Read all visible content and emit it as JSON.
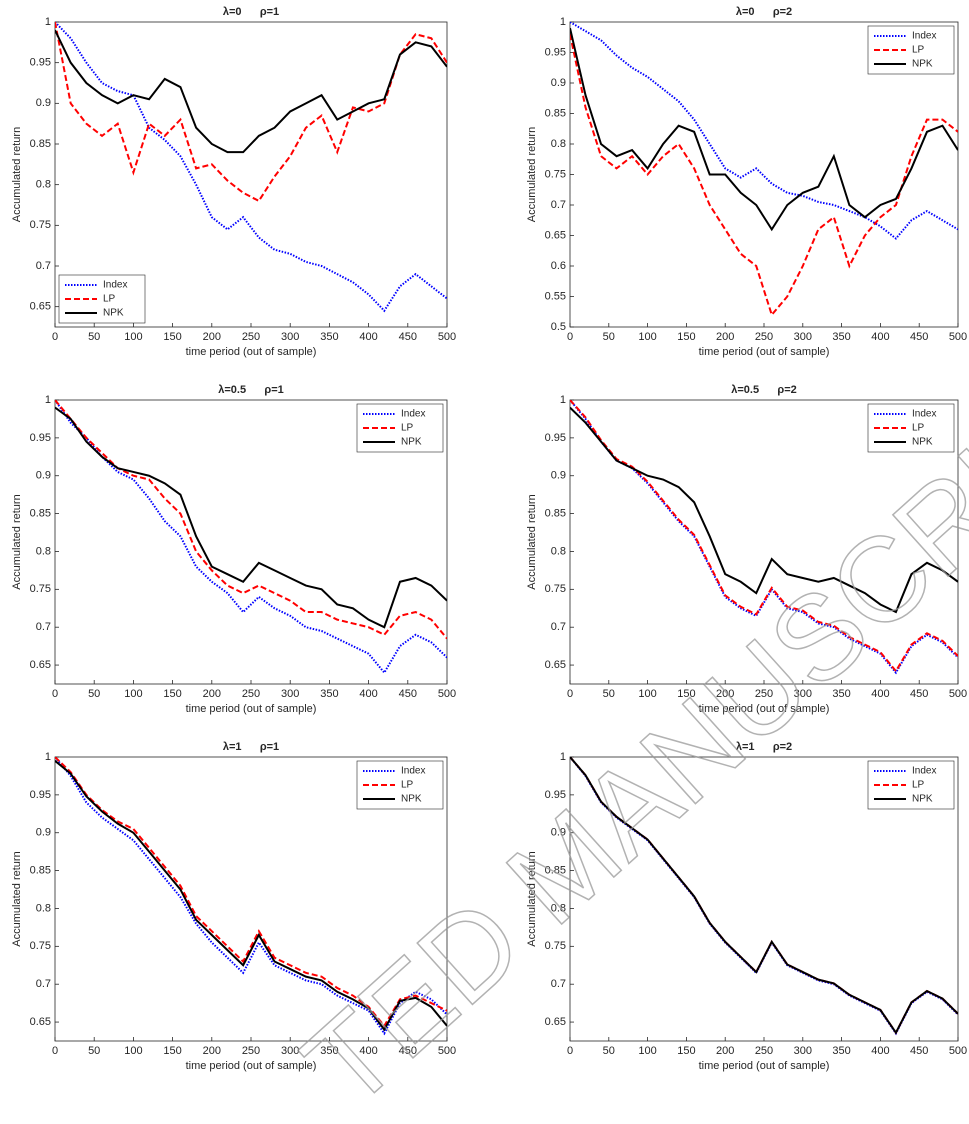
{
  "chart_data": [
    {
      "type": "line",
      "title": "λ=0      ρ=1",
      "xlabel": "time period (out of sample)",
      "ylabel": "Accumulated return",
      "x": [
        0,
        20,
        40,
        60,
        80,
        100,
        120,
        140,
        160,
        180,
        200,
        220,
        240,
        260,
        280,
        300,
        320,
        340,
        360,
        380,
        400,
        420,
        440,
        460,
        480,
        500
      ],
      "xlim": [
        0,
        500
      ],
      "xticks": [
        0,
        50,
        100,
        150,
        200,
        250,
        300,
        350,
        400,
        450,
        500
      ],
      "ylim": [
        0.625,
        1
      ],
      "yticks": [
        0.65,
        0.7,
        0.75,
        0.8,
        0.85,
        0.9,
        0.95,
        1
      ],
      "legend": "lower left",
      "series": [
        {
          "name": "Index",
          "color": "#0000ff",
          "style": "dotted",
          "values": [
            1.0,
            0.98,
            0.95,
            0.925,
            0.915,
            0.91,
            0.87,
            0.855,
            0.835,
            0.8,
            0.76,
            0.745,
            0.76,
            0.735,
            0.72,
            0.715,
            0.705,
            0.7,
            0.69,
            0.68,
            0.665,
            0.645,
            0.675,
            0.69,
            0.675,
            0.66
          ]
        },
        {
          "name": "LP",
          "color": "#ff0000",
          "style": "dashed",
          "values": [
            1.0,
            0.9,
            0.875,
            0.86,
            0.875,
            0.815,
            0.875,
            0.86,
            0.88,
            0.82,
            0.825,
            0.805,
            0.79,
            0.78,
            0.81,
            0.835,
            0.87,
            0.885,
            0.84,
            0.895,
            0.89,
            0.9,
            0.96,
            0.985,
            0.98,
            0.95
          ]
        },
        {
          "name": "NPK",
          "color": "#000000",
          "style": "solid",
          "values": [
            0.99,
            0.95,
            0.925,
            0.91,
            0.9,
            0.91,
            0.905,
            0.93,
            0.92,
            0.87,
            0.85,
            0.84,
            0.84,
            0.86,
            0.87,
            0.89,
            0.9,
            0.91,
            0.88,
            0.89,
            0.9,
            0.905,
            0.96,
            0.975,
            0.97,
            0.945
          ]
        }
      ]
    },
    {
      "type": "line",
      "title": "λ=0      ρ=2",
      "xlabel": "time period (out of sample)",
      "ylabel": "Accumulated return",
      "x": [
        0,
        20,
        40,
        60,
        80,
        100,
        120,
        140,
        160,
        180,
        200,
        220,
        240,
        260,
        280,
        300,
        320,
        340,
        360,
        380,
        400,
        420,
        440,
        460,
        480,
        500
      ],
      "xlim": [
        0,
        500
      ],
      "xticks": [
        0,
        50,
        100,
        150,
        200,
        250,
        300,
        350,
        400,
        450,
        500
      ],
      "ylim": [
        0.5,
        1
      ],
      "yticks": [
        0.5,
        0.55,
        0.6,
        0.65,
        0.7,
        0.75,
        0.8,
        0.85,
        0.9,
        0.95,
        1
      ],
      "legend": "upper right",
      "series": [
        {
          "name": "Index",
          "color": "#0000ff",
          "style": "dotted",
          "values": [
            1.0,
            0.985,
            0.97,
            0.945,
            0.925,
            0.91,
            0.89,
            0.87,
            0.84,
            0.8,
            0.76,
            0.745,
            0.76,
            0.735,
            0.72,
            0.715,
            0.705,
            0.7,
            0.69,
            0.68,
            0.665,
            0.645,
            0.675,
            0.69,
            0.675,
            0.66
          ]
        },
        {
          "name": "LP",
          "color": "#ff0000",
          "style": "dashed",
          "values": [
            0.98,
            0.86,
            0.78,
            0.76,
            0.78,
            0.75,
            0.78,
            0.8,
            0.76,
            0.7,
            0.66,
            0.62,
            0.6,
            0.52,
            0.55,
            0.6,
            0.66,
            0.68,
            0.6,
            0.65,
            0.68,
            0.7,
            0.78,
            0.84,
            0.84,
            0.82
          ]
        },
        {
          "name": "NPK",
          "color": "#000000",
          "style": "solid",
          "values": [
            0.99,
            0.88,
            0.8,
            0.78,
            0.79,
            0.76,
            0.8,
            0.83,
            0.82,
            0.75,
            0.75,
            0.72,
            0.7,
            0.66,
            0.7,
            0.72,
            0.73,
            0.78,
            0.7,
            0.68,
            0.7,
            0.71,
            0.76,
            0.82,
            0.83,
            0.79
          ]
        }
      ]
    },
    {
      "type": "line",
      "title": "λ=0.5      ρ=1",
      "xlabel": "time period (out of sample)",
      "ylabel": "Accumulated return",
      "x": [
        0,
        20,
        40,
        60,
        80,
        100,
        120,
        140,
        160,
        180,
        200,
        220,
        240,
        260,
        280,
        300,
        320,
        340,
        360,
        380,
        400,
        420,
        440,
        460,
        480,
        500
      ],
      "xlim": [
        0,
        500
      ],
      "xticks": [
        0,
        50,
        100,
        150,
        200,
        250,
        300,
        350,
        400,
        450,
        500
      ],
      "ylim": [
        0.625,
        1
      ],
      "yticks": [
        0.65,
        0.7,
        0.75,
        0.8,
        0.85,
        0.9,
        0.95,
        1
      ],
      "legend": "upper right",
      "series": [
        {
          "name": "Index",
          "color": "#0000ff",
          "style": "dotted",
          "values": [
            1.0,
            0.97,
            0.95,
            0.925,
            0.905,
            0.895,
            0.87,
            0.84,
            0.82,
            0.78,
            0.76,
            0.745,
            0.72,
            0.74,
            0.725,
            0.715,
            0.7,
            0.695,
            0.685,
            0.675,
            0.665,
            0.64,
            0.675,
            0.69,
            0.68,
            0.66
          ]
        },
        {
          "name": "LP",
          "color": "#ff0000",
          "style": "dashed",
          "values": [
            1.0,
            0.975,
            0.95,
            0.93,
            0.91,
            0.9,
            0.895,
            0.87,
            0.85,
            0.8,
            0.775,
            0.755,
            0.745,
            0.755,
            0.745,
            0.735,
            0.72,
            0.72,
            0.71,
            0.705,
            0.7,
            0.69,
            0.715,
            0.72,
            0.71,
            0.685
          ]
        },
        {
          "name": "NPK",
          "color": "#000000",
          "style": "solid",
          "values": [
            0.99,
            0.975,
            0.945,
            0.925,
            0.91,
            0.905,
            0.9,
            0.89,
            0.875,
            0.82,
            0.78,
            0.77,
            0.76,
            0.785,
            0.775,
            0.765,
            0.755,
            0.75,
            0.73,
            0.725,
            0.71,
            0.7,
            0.76,
            0.765,
            0.755,
            0.735
          ]
        }
      ]
    },
    {
      "type": "line",
      "title": "λ=0.5      ρ=2",
      "xlabel": "time period (out of sample)",
      "ylabel": "Accumulated return",
      "x": [
        0,
        20,
        40,
        60,
        80,
        100,
        120,
        140,
        160,
        180,
        200,
        220,
        240,
        260,
        280,
        300,
        320,
        340,
        360,
        380,
        400,
        420,
        440,
        460,
        480,
        500
      ],
      "xlim": [
        0,
        500
      ],
      "xticks": [
        0,
        50,
        100,
        150,
        200,
        250,
        300,
        350,
        400,
        450,
        500
      ],
      "ylim": [
        0.625,
        1
      ],
      "yticks": [
        0.65,
        0.7,
        0.75,
        0.8,
        0.85,
        0.9,
        0.95,
        1
      ],
      "legend": "upper right",
      "series": [
        {
          "name": "Index",
          "color": "#0000ff",
          "style": "dotted",
          "values": [
            1.0,
            0.975,
            0.945,
            0.92,
            0.91,
            0.89,
            0.865,
            0.84,
            0.82,
            0.78,
            0.74,
            0.725,
            0.715,
            0.75,
            0.725,
            0.72,
            0.705,
            0.7,
            0.685,
            0.675,
            0.665,
            0.64,
            0.675,
            0.69,
            0.68,
            0.66
          ]
        },
        {
          "name": "LP",
          "color": "#ff0000",
          "style": "dashed",
          "values": [
            1.0,
            0.977,
            0.947,
            0.922,
            0.912,
            0.892,
            0.867,
            0.842,
            0.822,
            0.782,
            0.742,
            0.727,
            0.717,
            0.752,
            0.727,
            0.722,
            0.707,
            0.702,
            0.687,
            0.677,
            0.667,
            0.642,
            0.677,
            0.692,
            0.682,
            0.662
          ]
        },
        {
          "name": "NPK",
          "color": "#000000",
          "style": "solid",
          "values": [
            0.99,
            0.97,
            0.945,
            0.92,
            0.91,
            0.9,
            0.895,
            0.885,
            0.865,
            0.82,
            0.77,
            0.76,
            0.745,
            0.79,
            0.77,
            0.765,
            0.76,
            0.765,
            0.755,
            0.745,
            0.73,
            0.72,
            0.77,
            0.785,
            0.775,
            0.76
          ]
        }
      ]
    },
    {
      "type": "line",
      "title": "λ=1      ρ=1",
      "xlabel": "time period (out of sample)",
      "ylabel": "Accumulated return",
      "x": [
        0,
        20,
        40,
        60,
        80,
        100,
        120,
        140,
        160,
        180,
        200,
        220,
        240,
        260,
        280,
        300,
        320,
        340,
        360,
        380,
        400,
        420,
        440,
        460,
        480,
        500
      ],
      "xlim": [
        0,
        500
      ],
      "xticks": [
        0,
        50,
        100,
        150,
        200,
        250,
        300,
        350,
        400,
        450,
        500
      ],
      "ylim": [
        0.625,
        1
      ],
      "yticks": [
        0.65,
        0.7,
        0.75,
        0.8,
        0.85,
        0.9,
        0.95,
        1
      ],
      "legend": "upper right",
      "series": [
        {
          "name": "Index",
          "color": "#0000ff",
          "style": "dotted",
          "values": [
            1.0,
            0.975,
            0.94,
            0.92,
            0.905,
            0.89,
            0.865,
            0.84,
            0.815,
            0.78,
            0.755,
            0.735,
            0.715,
            0.755,
            0.725,
            0.715,
            0.705,
            0.7,
            0.685,
            0.675,
            0.665,
            0.635,
            0.675,
            0.69,
            0.68,
            0.66
          ]
        },
        {
          "name": "LP",
          "color": "#ff0000",
          "style": "dashed",
          "values": [
            1.0,
            0.98,
            0.95,
            0.93,
            0.915,
            0.905,
            0.88,
            0.855,
            0.83,
            0.79,
            0.77,
            0.75,
            0.73,
            0.77,
            0.735,
            0.725,
            0.715,
            0.71,
            0.695,
            0.685,
            0.67,
            0.645,
            0.68,
            0.685,
            0.675,
            0.665
          ]
        },
        {
          "name": "NPK",
          "color": "#000000",
          "style": "solid",
          "values": [
            0.995,
            0.978,
            0.948,
            0.928,
            0.912,
            0.9,
            0.875,
            0.85,
            0.825,
            0.785,
            0.765,
            0.745,
            0.725,
            0.765,
            0.73,
            0.72,
            0.71,
            0.705,
            0.69,
            0.68,
            0.668,
            0.64,
            0.678,
            0.682,
            0.67,
            0.645
          ]
        }
      ]
    },
    {
      "type": "line",
      "title": "λ=1      ρ=2",
      "xlabel": "time period (out of sample)",
      "ylabel": "Accumulated return",
      "x": [
        0,
        20,
        40,
        60,
        80,
        100,
        120,
        140,
        160,
        180,
        200,
        220,
        240,
        260,
        280,
        300,
        320,
        340,
        360,
        380,
        400,
        420,
        440,
        460,
        480,
        500
      ],
      "xlim": [
        0,
        500
      ],
      "xticks": [
        0,
        50,
        100,
        150,
        200,
        250,
        300,
        350,
        400,
        450,
        500
      ],
      "ylim": [
        0.625,
        1
      ],
      "yticks": [
        0.65,
        0.7,
        0.75,
        0.8,
        0.85,
        0.9,
        0.95,
        1
      ],
      "legend": "upper right",
      "series": [
        {
          "name": "Index",
          "color": "#0000ff",
          "style": "dotted",
          "values": [
            1.0,
            0.975,
            0.94,
            0.92,
            0.905,
            0.89,
            0.865,
            0.84,
            0.815,
            0.78,
            0.755,
            0.735,
            0.715,
            0.755,
            0.725,
            0.715,
            0.705,
            0.7,
            0.685,
            0.675,
            0.665,
            0.635,
            0.675,
            0.69,
            0.68,
            0.66
          ]
        },
        {
          "name": "LP",
          "color": "#ff0000",
          "style": "dashed",
          "values": [
            1.0,
            0.976,
            0.941,
            0.921,
            0.906,
            0.891,
            0.866,
            0.841,
            0.816,
            0.781,
            0.756,
            0.736,
            0.716,
            0.756,
            0.726,
            0.716,
            0.706,
            0.701,
            0.686,
            0.676,
            0.666,
            0.636,
            0.676,
            0.691,
            0.681,
            0.661
          ]
        },
        {
          "name": "NPK",
          "color": "#000000",
          "style": "solid",
          "values": [
            1.0,
            0.976,
            0.941,
            0.921,
            0.906,
            0.891,
            0.866,
            0.841,
            0.816,
            0.781,
            0.756,
            0.736,
            0.716,
            0.756,
            0.726,
            0.716,
            0.706,
            0.701,
            0.686,
            0.676,
            0.666,
            0.636,
            0.676,
            0.691,
            0.681,
            0.661
          ]
        }
      ]
    }
  ],
  "watermark": "TED MANUSCRIPT"
}
